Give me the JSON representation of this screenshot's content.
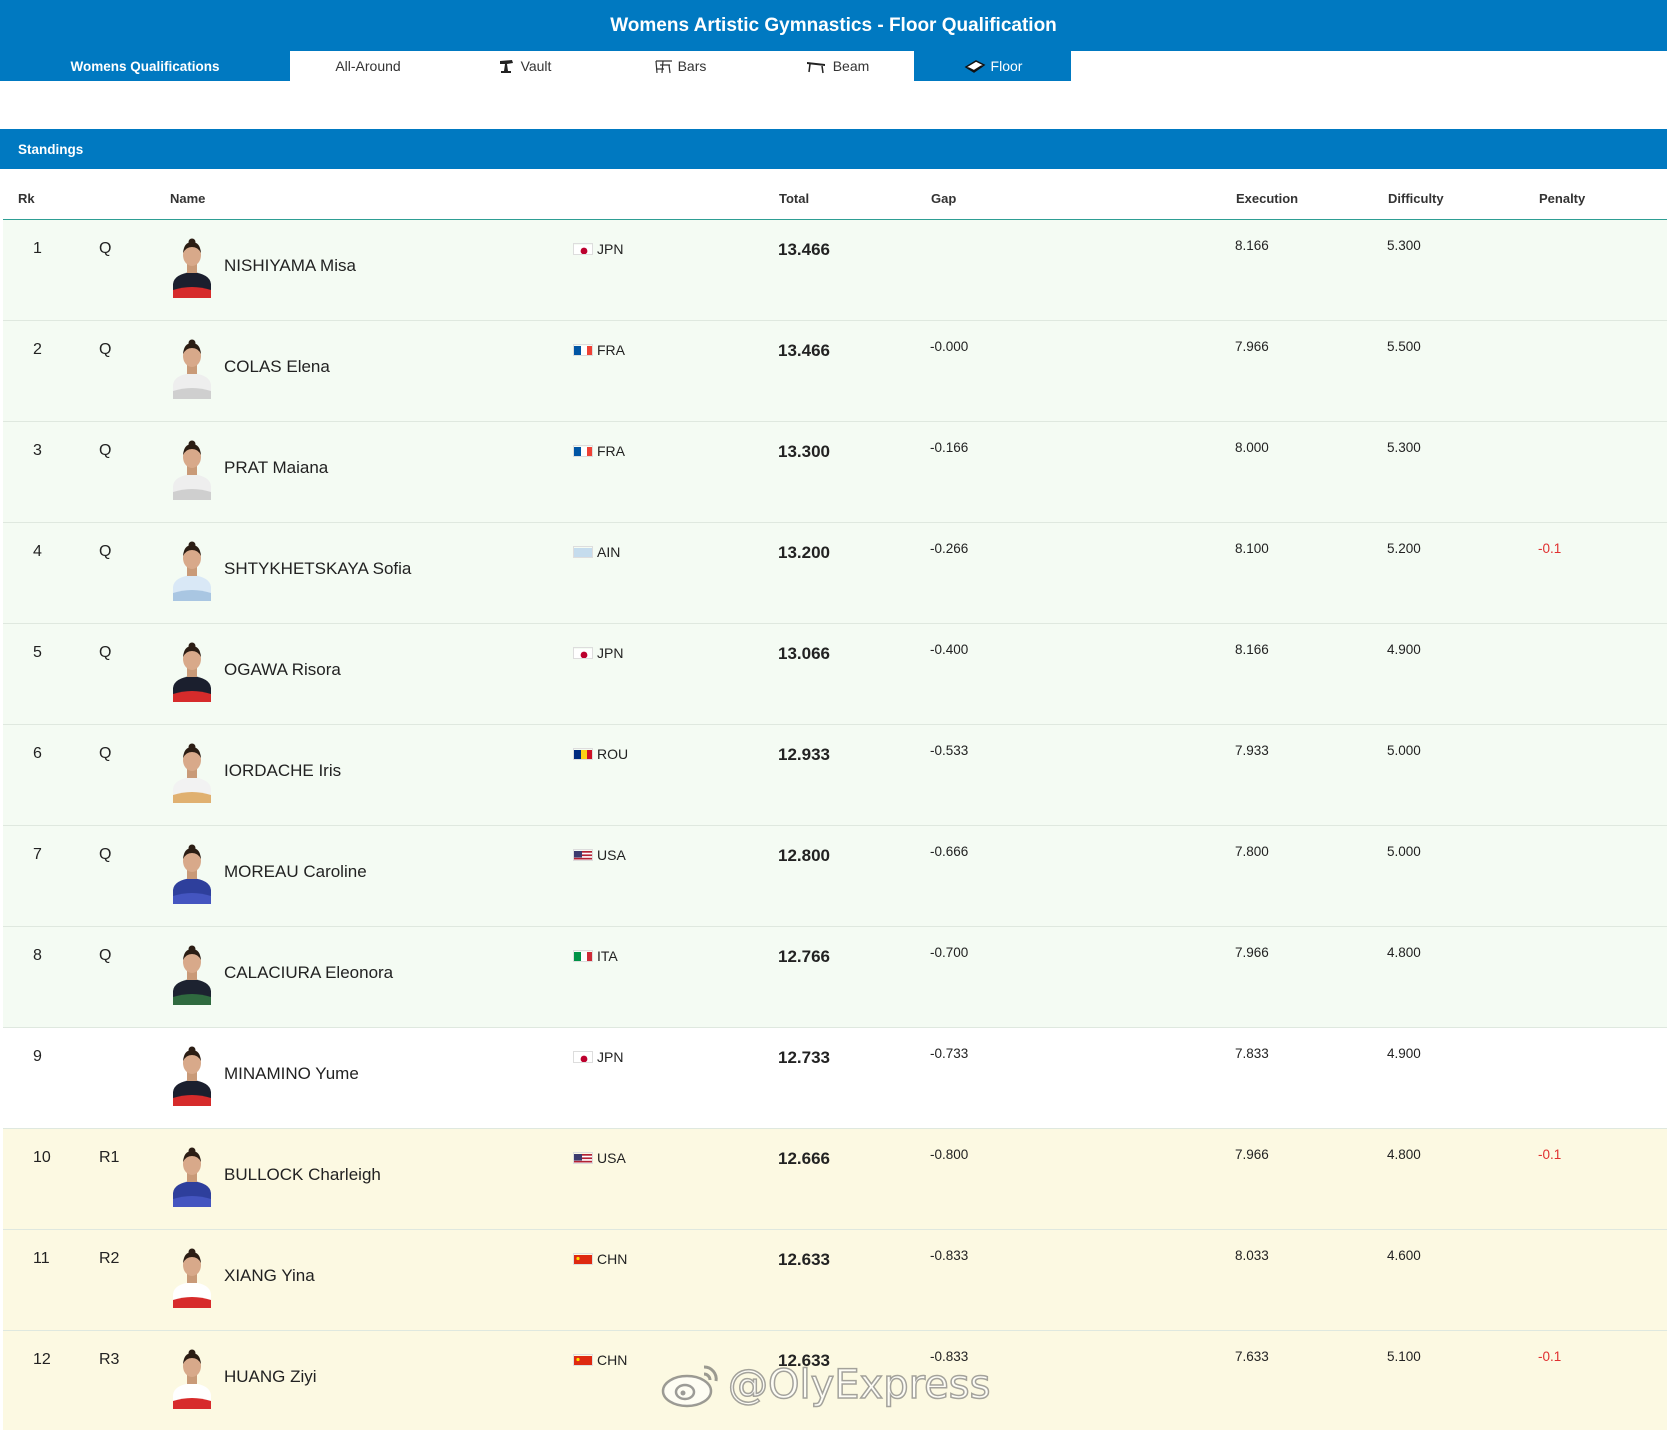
{
  "page_title": "Womens Artistic Gymnastics - Floor Qualification",
  "tabs": [
    {
      "label": "Womens Qualifications",
      "icon": ""
    },
    {
      "label": "All-Around",
      "icon": ""
    },
    {
      "label": "Vault",
      "icon": "vault-icon"
    },
    {
      "label": "Bars",
      "icon": "bars-icon"
    },
    {
      "label": "Beam",
      "icon": "beam-icon"
    },
    {
      "label": "Floor",
      "icon": "floor-icon"
    }
  ],
  "section_title": "Standings",
  "columns": {
    "rk": "Rk",
    "name": "Name",
    "total": "Total",
    "gap": "Gap",
    "execution": "Execution",
    "difficulty": "Difficulty",
    "penalty": "Penalty"
  },
  "rows": [
    {
      "rk": "1",
      "qual": "Q",
      "name": "NISHIYAMA Misa",
      "noc": "JPN",
      "total": "13.466",
      "gap": "",
      "execution": "8.166",
      "difficulty": "5.300",
      "penalty": "",
      "status": "q"
    },
    {
      "rk": "2",
      "qual": "Q",
      "name": "COLAS Elena",
      "noc": "FRA",
      "total": "13.466",
      "gap": "-0.000",
      "execution": "7.966",
      "difficulty": "5.500",
      "penalty": "",
      "status": "q"
    },
    {
      "rk": "3",
      "qual": "Q",
      "name": "PRAT Maiana",
      "noc": "FRA",
      "total": "13.300",
      "gap": "-0.166",
      "execution": "8.000",
      "difficulty": "5.300",
      "penalty": "",
      "status": "q"
    },
    {
      "rk": "4",
      "qual": "Q",
      "name": "SHTYKHETSKAYA Sofia",
      "noc": "AIN",
      "total": "13.200",
      "gap": "-0.266",
      "execution": "8.100",
      "difficulty": "5.200",
      "penalty": "-0.1",
      "status": "q"
    },
    {
      "rk": "5",
      "qual": "Q",
      "name": "OGAWA Risora",
      "noc": "JPN",
      "total": "13.066",
      "gap": "-0.400",
      "execution": "8.166",
      "difficulty": "4.900",
      "penalty": "",
      "status": "q"
    },
    {
      "rk": "6",
      "qual": "Q",
      "name": "IORDACHE Iris",
      "noc": "ROU",
      "total": "12.933",
      "gap": "-0.533",
      "execution": "7.933",
      "difficulty": "5.000",
      "penalty": "",
      "status": "q"
    },
    {
      "rk": "7",
      "qual": "Q",
      "name": "MOREAU Caroline",
      "noc": "USA",
      "total": "12.800",
      "gap": "-0.666",
      "execution": "7.800",
      "difficulty": "5.000",
      "penalty": "",
      "status": "q"
    },
    {
      "rk": "8",
      "qual": "Q",
      "name": "CALACIURA Eleonora",
      "noc": "ITA",
      "total": "12.766",
      "gap": "-0.700",
      "execution": "7.966",
      "difficulty": "4.800",
      "penalty": "",
      "status": "q"
    },
    {
      "rk": "9",
      "qual": "",
      "name": "MINAMINO Yume",
      "noc": "JPN",
      "total": "12.733",
      "gap": "-0.733",
      "execution": "7.833",
      "difficulty": "4.900",
      "penalty": "",
      "status": "n"
    },
    {
      "rk": "10",
      "qual": "R1",
      "name": "BULLOCK Charleigh",
      "noc": "USA",
      "total": "12.666",
      "gap": "-0.800",
      "execution": "7.966",
      "difficulty": "4.800",
      "penalty": "-0.1",
      "status": "r"
    },
    {
      "rk": "11",
      "qual": "R2",
      "name": "XIANG Yina",
      "noc": "CHN",
      "total": "12.633",
      "gap": "-0.833",
      "execution": "8.033",
      "difficulty": "4.600",
      "penalty": "",
      "status": "r"
    },
    {
      "rk": "12",
      "qual": "R3",
      "name": "HUANG Ziyi",
      "noc": "CHN",
      "total": "12.633",
      "gap": "-0.833",
      "execution": "7.633",
      "difficulty": "5.100",
      "penalty": "-0.1",
      "status": "r"
    }
  ],
  "watermark": "@OlyExpress",
  "colors": {
    "primary": "#0079c1",
    "qualified_bg": "#f4fbf3",
    "reserve_bg": "#fcf9e2",
    "penalty": "#e03030"
  }
}
